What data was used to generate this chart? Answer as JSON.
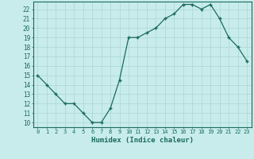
{
  "x": [
    0,
    1,
    2,
    3,
    4,
    5,
    6,
    7,
    8,
    9,
    10,
    11,
    12,
    13,
    14,
    15,
    16,
    17,
    18,
    19,
    20,
    21,
    22,
    23
  ],
  "y": [
    15,
    14,
    13,
    12,
    12,
    11,
    10,
    10,
    11.5,
    14.5,
    19,
    19,
    19.5,
    20,
    21,
    21.5,
    22.5,
    22.5,
    22,
    22.5,
    21,
    19,
    18,
    16.5
  ],
  "line_color": "#1a6b5a",
  "marker": "+",
  "marker_color": "#1a6b5a",
  "bg_color": "#c8ecec",
  "grid_major_color": "#b0d8d8",
  "grid_minor_color": "#c0e4e4",
  "xlabel": "Humidex (Indice chaleur)",
  "ylabel_ticks": [
    10,
    11,
    12,
    13,
    14,
    15,
    16,
    17,
    18,
    19,
    20,
    21,
    22
  ],
  "xlim": [
    -0.5,
    23.5
  ],
  "ylim": [
    9.5,
    22.8
  ]
}
